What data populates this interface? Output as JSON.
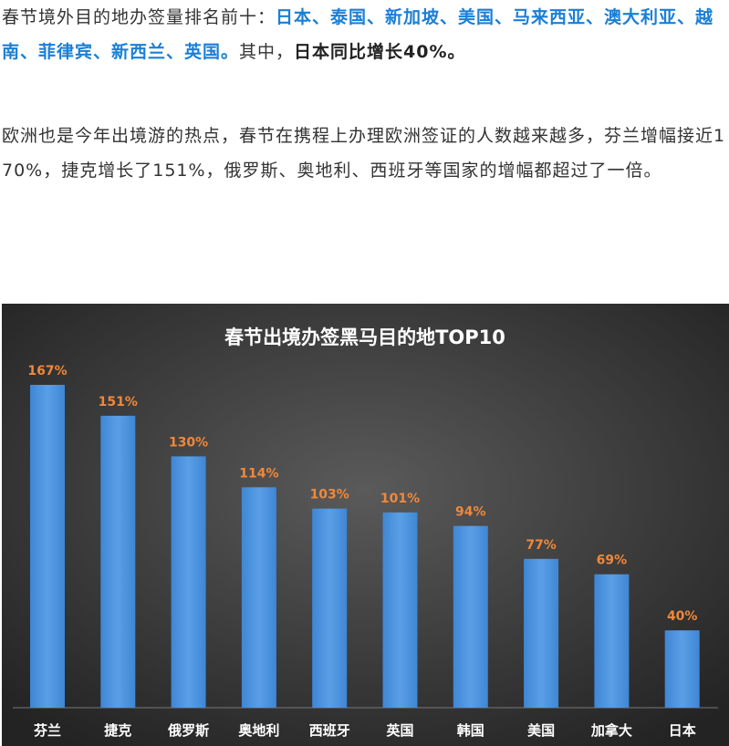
{
  "article": {
    "p1_lead": "春节境外目的地办签量排名前十：",
    "p1_highlight": "日本、泰国、新加坡、美国、马来西亚、澳大利亚、越南、菲律宾、新西兰、英国。",
    "p1_mid": "其中，",
    "p1_bold": "日本同比增长40%。",
    "p2": "欧洲也是今年出境游的热点，春节在携程上办理欧洲签证的人数越来越多，芬兰增幅接近170%，捷克增长了151%，俄罗斯、奥地利、西班牙等国家的增幅都超过了一倍。"
  },
  "colors": {
    "highlight_text": "#1a7fd6",
    "chart_bg_center": "#5a5a5a",
    "chart_bg_edge": "#232323",
    "bar": "#4a90d9",
    "value_label": "#f0883a",
    "title_text": "#ffffff",
    "category_text": "#ffffff"
  },
  "chart_data": {
    "type": "bar",
    "title": "春节出境办签黑马目的地TOP10",
    "categories": [
      "芬兰",
      "捷克",
      "俄罗斯",
      "奥地利",
      "西班牙",
      "英国",
      "韩国",
      "美国",
      "加拿大",
      "日本"
    ],
    "values": [
      167,
      151,
      130,
      114,
      103,
      101,
      94,
      77,
      69,
      40
    ],
    "value_labels": [
      "167%",
      "151%",
      "130%",
      "114%",
      "103%",
      "101%",
      "94%",
      "77%",
      "69%",
      "40%"
    ],
    "ylim": [
      0,
      167
    ],
    "grid": false,
    "legend": "none"
  }
}
